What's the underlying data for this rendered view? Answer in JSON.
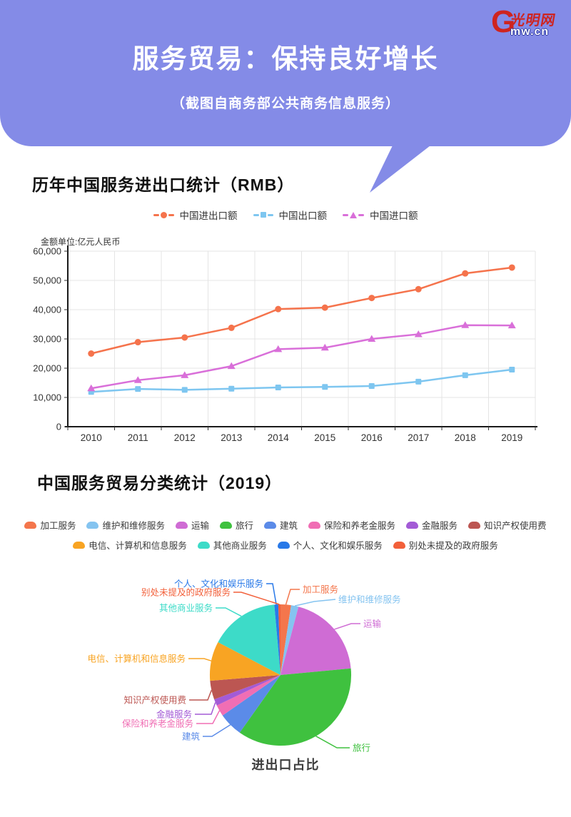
{
  "header": {
    "title": "服务贸易：保持良好增长",
    "subtitle": "（截图自商务部公共商务信息服务）",
    "background_color": "#848BE7",
    "logo_g": "G",
    "logo_brand": "光明网",
    "logo_domain": "mw.cn"
  },
  "line_section": {
    "title": "历年中国服务进出口统计（RMB）",
    "unit_label": "金额单位:亿元人民币"
  },
  "pie_section": {
    "title": "中国服务贸易分类统计（2019）",
    "caption": "进出口占比"
  },
  "chart_data": [
    {
      "type": "line",
      "title": "历年中国服务进出口统计（RMB）",
      "ylabel": "金额单位:亿元人民币",
      "categories": [
        "2010",
        "2011",
        "2012",
        "2013",
        "2014",
        "2015",
        "2016",
        "2017",
        "2018",
        "2019"
      ],
      "ylim": [
        0,
        60000
      ],
      "ytick_interval": 10000,
      "grid": true,
      "legend_position": "top",
      "series": [
        {
          "name": "中国进出口额",
          "color": "#F5734C",
          "marker": "circle",
          "values": [
            25000,
            28900,
            30500,
            33800,
            40200,
            40700,
            44000,
            47000,
            52400,
            54400
          ]
        },
        {
          "name": "中国出口额",
          "color": "#7EC6F0",
          "marker": "square",
          "values": [
            11900,
            12900,
            12600,
            13000,
            13400,
            13600,
            13900,
            15400,
            17600,
            19500
          ]
        },
        {
          "name": "中国进口额",
          "color": "#D96FD9",
          "marker": "triangle",
          "values": [
            13100,
            15900,
            17600,
            20700,
            26500,
            27000,
            30000,
            31600,
            34700,
            34600
          ]
        }
      ]
    },
    {
      "type": "pie",
      "title": "中国服务贸易分类统计（2019）",
      "caption": "进出口占比",
      "legend_position": "top",
      "slices": [
        {
          "name": "加工服务",
          "color": "#F4764C",
          "pct": 2.4
        },
        {
          "name": "维护和维修服务",
          "color": "#85C4F0",
          "pct": 1.7
        },
        {
          "name": "运输",
          "color": "#CF6CD4",
          "pct": 19.4
        },
        {
          "name": "旅行",
          "color": "#3FC13F",
          "pct": 36.3
        },
        {
          "name": "建筑",
          "color": "#5B8BE8",
          "pct": 5.5
        },
        {
          "name": "保险和养老金服务",
          "color": "#F06EB4",
          "pct": 2.6
        },
        {
          "name": "金融服务",
          "color": "#A35BD6",
          "pct": 1.5
        },
        {
          "name": "知识产权使用费",
          "color": "#BC5652",
          "pct": 4.3
        },
        {
          "name": "电信、计算机和信息服务",
          "color": "#F8A423",
          "pct": 9.0
        },
        {
          "name": "其他商业服务",
          "color": "#3DDBC8",
          "pct": 15.9
        },
        {
          "name": "个人、文化和娱乐服务",
          "color": "#2979E8",
          "pct": 0.9
        },
        {
          "name": "别处未提及的政府服务",
          "color": "#F2603A",
          "pct": 0.5
        }
      ]
    }
  ]
}
